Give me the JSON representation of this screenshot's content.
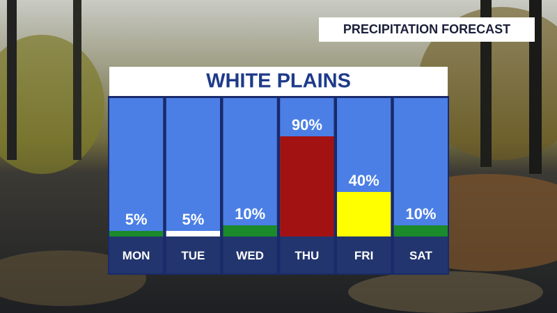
{
  "header": {
    "title": "PRECIPITATION FORECAST"
  },
  "chart_data": {
    "type": "bar",
    "title": "WHITE PLAINS",
    "categories": [
      "MON",
      "TUE",
      "WED",
      "THU",
      "FRI",
      "SAT"
    ],
    "values": [
      5,
      5,
      10,
      90,
      40,
      10
    ],
    "value_labels": [
      "5%",
      "5%",
      "10%",
      "90%",
      "40%",
      "10%"
    ],
    "colors": [
      "#1a8a2a",
      "#ffffff",
      "#1a8a2a",
      "#a31212",
      "#ffff00",
      "#1a8a2a"
    ]
  }
}
